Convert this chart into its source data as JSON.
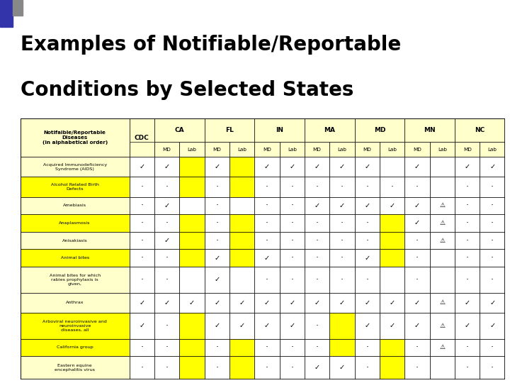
{
  "title_line1": "Examples of Notifiable/Reportable",
  "title_line2": "Conditions by Selected States",
  "bg_color": "#ffffff",
  "cell_yellow": "#ffff00",
  "cell_white": "#ffffff",
  "cell_cream": "#ffffcc",
  "row_labels": [
    "Acquired Immunodeficiency\nSyndrome (AIDS)",
    "Alcohol Related Birth\nDefects",
    "Amebiasis",
    "Anaplasmosis",
    "Anisakiasis",
    "Animal bites",
    "Animal bites for which\nrabies prophylaxis is\ngiven,",
    "Anthrax",
    "Arboviral neuroinvasive and\nneuroinvasive\ndiseases, all",
    "California group",
    "Eastern equine\nencephalitis virus"
  ],
  "states": [
    "CA",
    "FL",
    "IN",
    "MA",
    "MD",
    "MN",
    "NC"
  ],
  "table_data": [
    [
      "v",
      "v",
      "Y",
      "v",
      "Y",
      "v",
      "v",
      "v",
      "v",
      "v",
      "W",
      "v",
      "W",
      "v",
      "v"
    ],
    [
      "d",
      "d",
      "Y",
      "d",
      "Y",
      "d",
      "d",
      "d",
      "d",
      "d",
      "d",
      "d",
      "W",
      "d",
      "d"
    ],
    [
      "d",
      "v",
      "W",
      "d",
      "W",
      "d",
      "d",
      "v",
      "v",
      "v",
      "v",
      "v",
      "P",
      "d",
      "d"
    ],
    [
      "d",
      "d",
      "Y",
      "d",
      "Y",
      "d",
      "d",
      "d",
      "d",
      "d",
      "Y",
      "v",
      "P",
      "d",
      "d"
    ],
    [
      "d",
      "v",
      "Y",
      "d",
      "Y",
      "d",
      "d",
      "d",
      "d",
      "d",
      "Y",
      "d",
      "P",
      "d",
      "d"
    ],
    [
      "d",
      "d",
      "Y",
      "v",
      "Y",
      "v",
      "d",
      "d",
      "d",
      "v",
      "Y",
      "d",
      "W",
      "d",
      "d"
    ],
    [
      "d",
      "d",
      "W",
      "v",
      "W",
      "d",
      "d",
      "d",
      "d",
      "d",
      "W",
      "d",
      "W",
      "d",
      "d"
    ],
    [
      "v",
      "v",
      "v",
      "v",
      "v",
      "v",
      "v",
      "v",
      "v",
      "v",
      "v",
      "v",
      "P",
      "v",
      "v"
    ],
    [
      "v",
      "d",
      "Y",
      "v",
      "v",
      "v",
      "v",
      "d",
      "Y",
      "v",
      "v",
      "v",
      "P",
      "v",
      "v"
    ],
    [
      "d",
      "d",
      "Y",
      "d",
      "Y",
      "d",
      "d",
      "d",
      "Y",
      "d",
      "Y",
      "d",
      "P",
      "d",
      "d"
    ],
    [
      "d",
      "d",
      "Y",
      "d",
      "Y",
      "d",
      "d",
      "v",
      "v",
      "d",
      "Y",
      "d",
      "W",
      "d",
      "d"
    ]
  ],
  "row_label_colors": [
    "cream",
    "yellow",
    "cream",
    "yellow",
    "cream",
    "yellow",
    "cream",
    "cream",
    "yellow",
    "yellow",
    "cream"
  ]
}
